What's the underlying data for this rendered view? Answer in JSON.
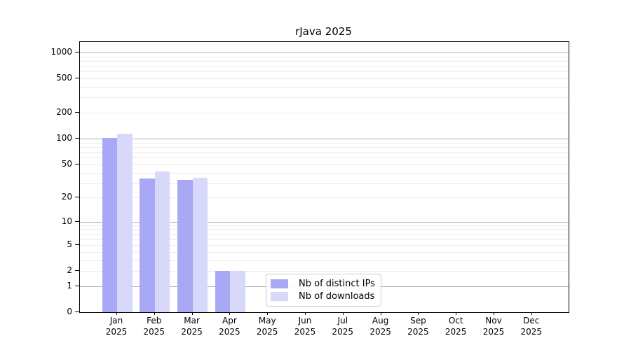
{
  "chart_data": {
    "type": "bar",
    "title": "rJava 2025",
    "categories": [
      "Jan 2025",
      "Feb 2025",
      "Mar 2025",
      "Apr 2025",
      "May 2025",
      "Jun 2025",
      "Jul 2025",
      "Aug 2025",
      "Sep 2025",
      "Oct 2025",
      "Nov 2025",
      "Dec 2025"
    ],
    "months": [
      "Jan",
      "Feb",
      "Mar",
      "Apr",
      "May",
      "Jun",
      "Jul",
      "Aug",
      "Sep",
      "Oct",
      "Nov",
      "Dec"
    ],
    "year": "2025",
    "series": [
      {
        "name": "Nb of distinct IPs",
        "color": "#a8a8f4",
        "values": [
          103,
          34,
          33,
          2,
          0,
          0,
          0,
          0,
          0,
          0,
          0,
          0
        ]
      },
      {
        "name": "Nb of downloads",
        "color": "#d8d8fa",
        "values": [
          115,
          41,
          35,
          2,
          0,
          0,
          0,
          0,
          0,
          0,
          0,
          0
        ]
      }
    ],
    "xlabel": "",
    "ylabel": "",
    "yscale": "log1p",
    "yticks": [
      0,
      1,
      2,
      5,
      10,
      20,
      50,
      100,
      200,
      500,
      1000
    ],
    "ylim": [
      0,
      1320
    ],
    "grid": "horizontal",
    "grid_major_at": [
      1,
      10,
      100,
      1000
    ],
    "grid_major_color": "#b0b0b0",
    "grid_minor_color": "#e9e9e9",
    "legend_position": "bottom-center-inside",
    "axis_color": "#000000",
    "background_color": "#ffffff"
  }
}
